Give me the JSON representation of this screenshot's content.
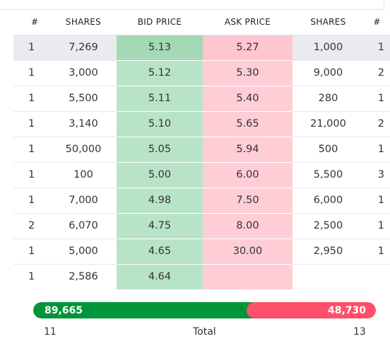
{
  "headers": {
    "num_left": "#",
    "shares_left": "SHARES",
    "bid_price": "BID PRICE",
    "ask_price": "ASK PRICE",
    "shares_right": "SHARES",
    "num_right": "#"
  },
  "rows": [
    {
      "bid_count": "1",
      "bid_shares": "7,269",
      "bid_price": "5.13",
      "ask_price": "5.27",
      "ask_shares": "1,000",
      "ask_count": "1"
    },
    {
      "bid_count": "1",
      "bid_shares": "3,000",
      "bid_price": "5.12",
      "ask_price": "5.30",
      "ask_shares": "9,000",
      "ask_count": "2"
    },
    {
      "bid_count": "1",
      "bid_shares": "5,500",
      "bid_price": "5.11",
      "ask_price": "5.40",
      "ask_shares": "280",
      "ask_count": "1"
    },
    {
      "bid_count": "1",
      "bid_shares": "3,140",
      "bid_price": "5.10",
      "ask_price": "5.65",
      "ask_shares": "21,000",
      "ask_count": "2"
    },
    {
      "bid_count": "1",
      "bid_shares": "50,000",
      "bid_price": "5.05",
      "ask_price": "5.94",
      "ask_shares": "500",
      "ask_count": "1"
    },
    {
      "bid_count": "1",
      "bid_shares": "100",
      "bid_price": "5.00",
      "ask_price": "6.00",
      "ask_shares": "5,500",
      "ask_count": "3"
    },
    {
      "bid_count": "1",
      "bid_shares": "7,000",
      "bid_price": "4.98",
      "ask_price": "7.50",
      "ask_shares": "6,000",
      "ask_count": "1"
    },
    {
      "bid_count": "2",
      "bid_shares": "6,070",
      "bid_price": "4.75",
      "ask_price": "8.00",
      "ask_shares": "2,500",
      "ask_count": "1"
    },
    {
      "bid_count": "1",
      "bid_shares": "5,000",
      "bid_price": "4.65",
      "ask_price": "30.00",
      "ask_shares": "2,950",
      "ask_count": "1"
    },
    {
      "bid_count": "1",
      "bid_shares": "2,586",
      "bid_price": "4.64",
      "ask_price": "",
      "ask_shares": "",
      "ask_count": ""
    }
  ],
  "volume": {
    "bid_total": "89,665",
    "ask_total": "48,730",
    "bid_fraction": 0.648
  },
  "totals": {
    "bid_orders": "11",
    "label": "Total",
    "ask_orders": "13"
  },
  "colors": {
    "bid_bar": "#009538",
    "ask_bar": "#ff4f6a",
    "bid_cell": "#b9e3c6",
    "ask_cell": "#ffcdd6",
    "highlight_row": "#e9ebee"
  }
}
